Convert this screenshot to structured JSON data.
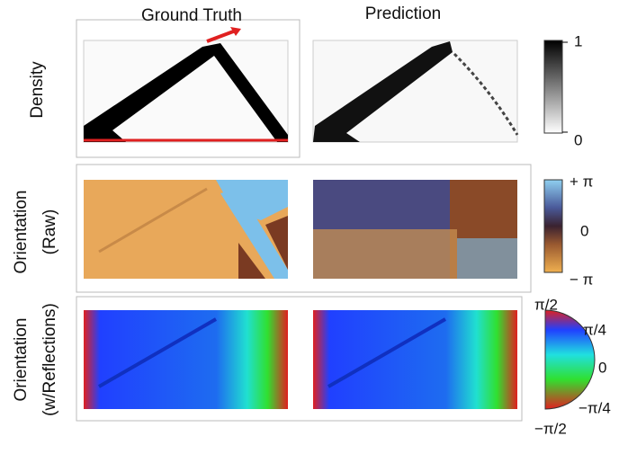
{
  "columns": [
    "Ground Truth",
    "Prediction"
  ],
  "rows": [
    {
      "lines": [
        "Density"
      ]
    },
    {
      "lines": [
        "Orientation",
        "(Raw)"
      ]
    },
    {
      "lines": [
        "Orientation",
        "(w/Reflections)"
      ]
    }
  ],
  "colorbars": [
    {
      "labels": [
        "1",
        "0"
      ]
    },
    {
      "labels": [
        "+ π",
        "0",
        "− π"
      ]
    },
    {
      "labels": [
        "π/2",
        "π/4",
        "0",
        "−π/4",
        "−π/2"
      ]
    }
  ]
}
